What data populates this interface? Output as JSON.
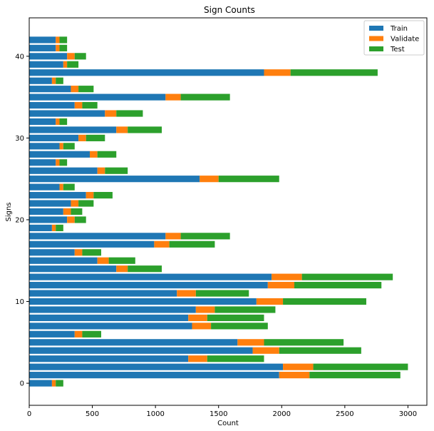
{
  "chart_data": {
    "type": "bar",
    "orientation": "horizontal",
    "stacked": true,
    "title": "Sign Counts",
    "xlabel": "Count",
    "ylabel": "Signs",
    "xlim": [
      0,
      3150
    ],
    "ylim": [
      -2.7,
      44.7
    ],
    "xticks": [
      0,
      500,
      1000,
      1500,
      2000,
      2500,
      3000
    ],
    "yticks": [
      0,
      10,
      20,
      30,
      40
    ],
    "grid": false,
    "legend_position": "top-right",
    "categories": [
      0,
      1,
      2,
      3,
      4,
      5,
      6,
      7,
      8,
      9,
      10,
      11,
      12,
      13,
      14,
      15,
      16,
      17,
      18,
      19,
      20,
      21,
      22,
      23,
      24,
      25,
      26,
      27,
      28,
      29,
      30,
      31,
      32,
      33,
      34,
      35,
      36,
      37,
      38,
      39,
      40,
      41,
      42
    ],
    "series": [
      {
        "name": "Train",
        "color": "#1f77b4",
        "values": [
          180,
          1980,
          2010,
          1260,
          1770,
          1650,
          360,
          1290,
          1260,
          1320,
          1800,
          1170,
          1890,
          1920,
          690,
          540,
          360,
          990,
          1080,
          180,
          300,
          270,
          330,
          450,
          240,
          1350,
          540,
          210,
          480,
          240,
          390,
          690,
          210,
          600,
          360,
          1080,
          330,
          180,
          1860,
          270,
          300,
          210,
          210
        ]
      },
      {
        "name": "Validate",
        "color": "#ff7f0e",
        "values": [
          30,
          240,
          240,
          150,
          210,
          210,
          60,
          150,
          150,
          150,
          210,
          150,
          210,
          240,
          90,
          90,
          60,
          120,
          120,
          30,
          60,
          60,
          60,
          60,
          30,
          150,
          60,
          30,
          60,
          30,
          60,
          90,
          30,
          90,
          60,
          120,
          60,
          30,
          210,
          30,
          60,
          30,
          30
        ]
      },
      {
        "name": "Test",
        "color": "#2ca02c",
        "values": [
          60,
          720,
          750,
          450,
          650,
          630,
          150,
          450,
          450,
          480,
          660,
          420,
          690,
          720,
          270,
          210,
          150,
          360,
          390,
          60,
          90,
          90,
          120,
          150,
          90,
          480,
          180,
          60,
          150,
          90,
          150,
          270,
          60,
          210,
          120,
          390,
          120,
          60,
          690,
          90,
          90,
          60,
          60
        ]
      }
    ]
  }
}
